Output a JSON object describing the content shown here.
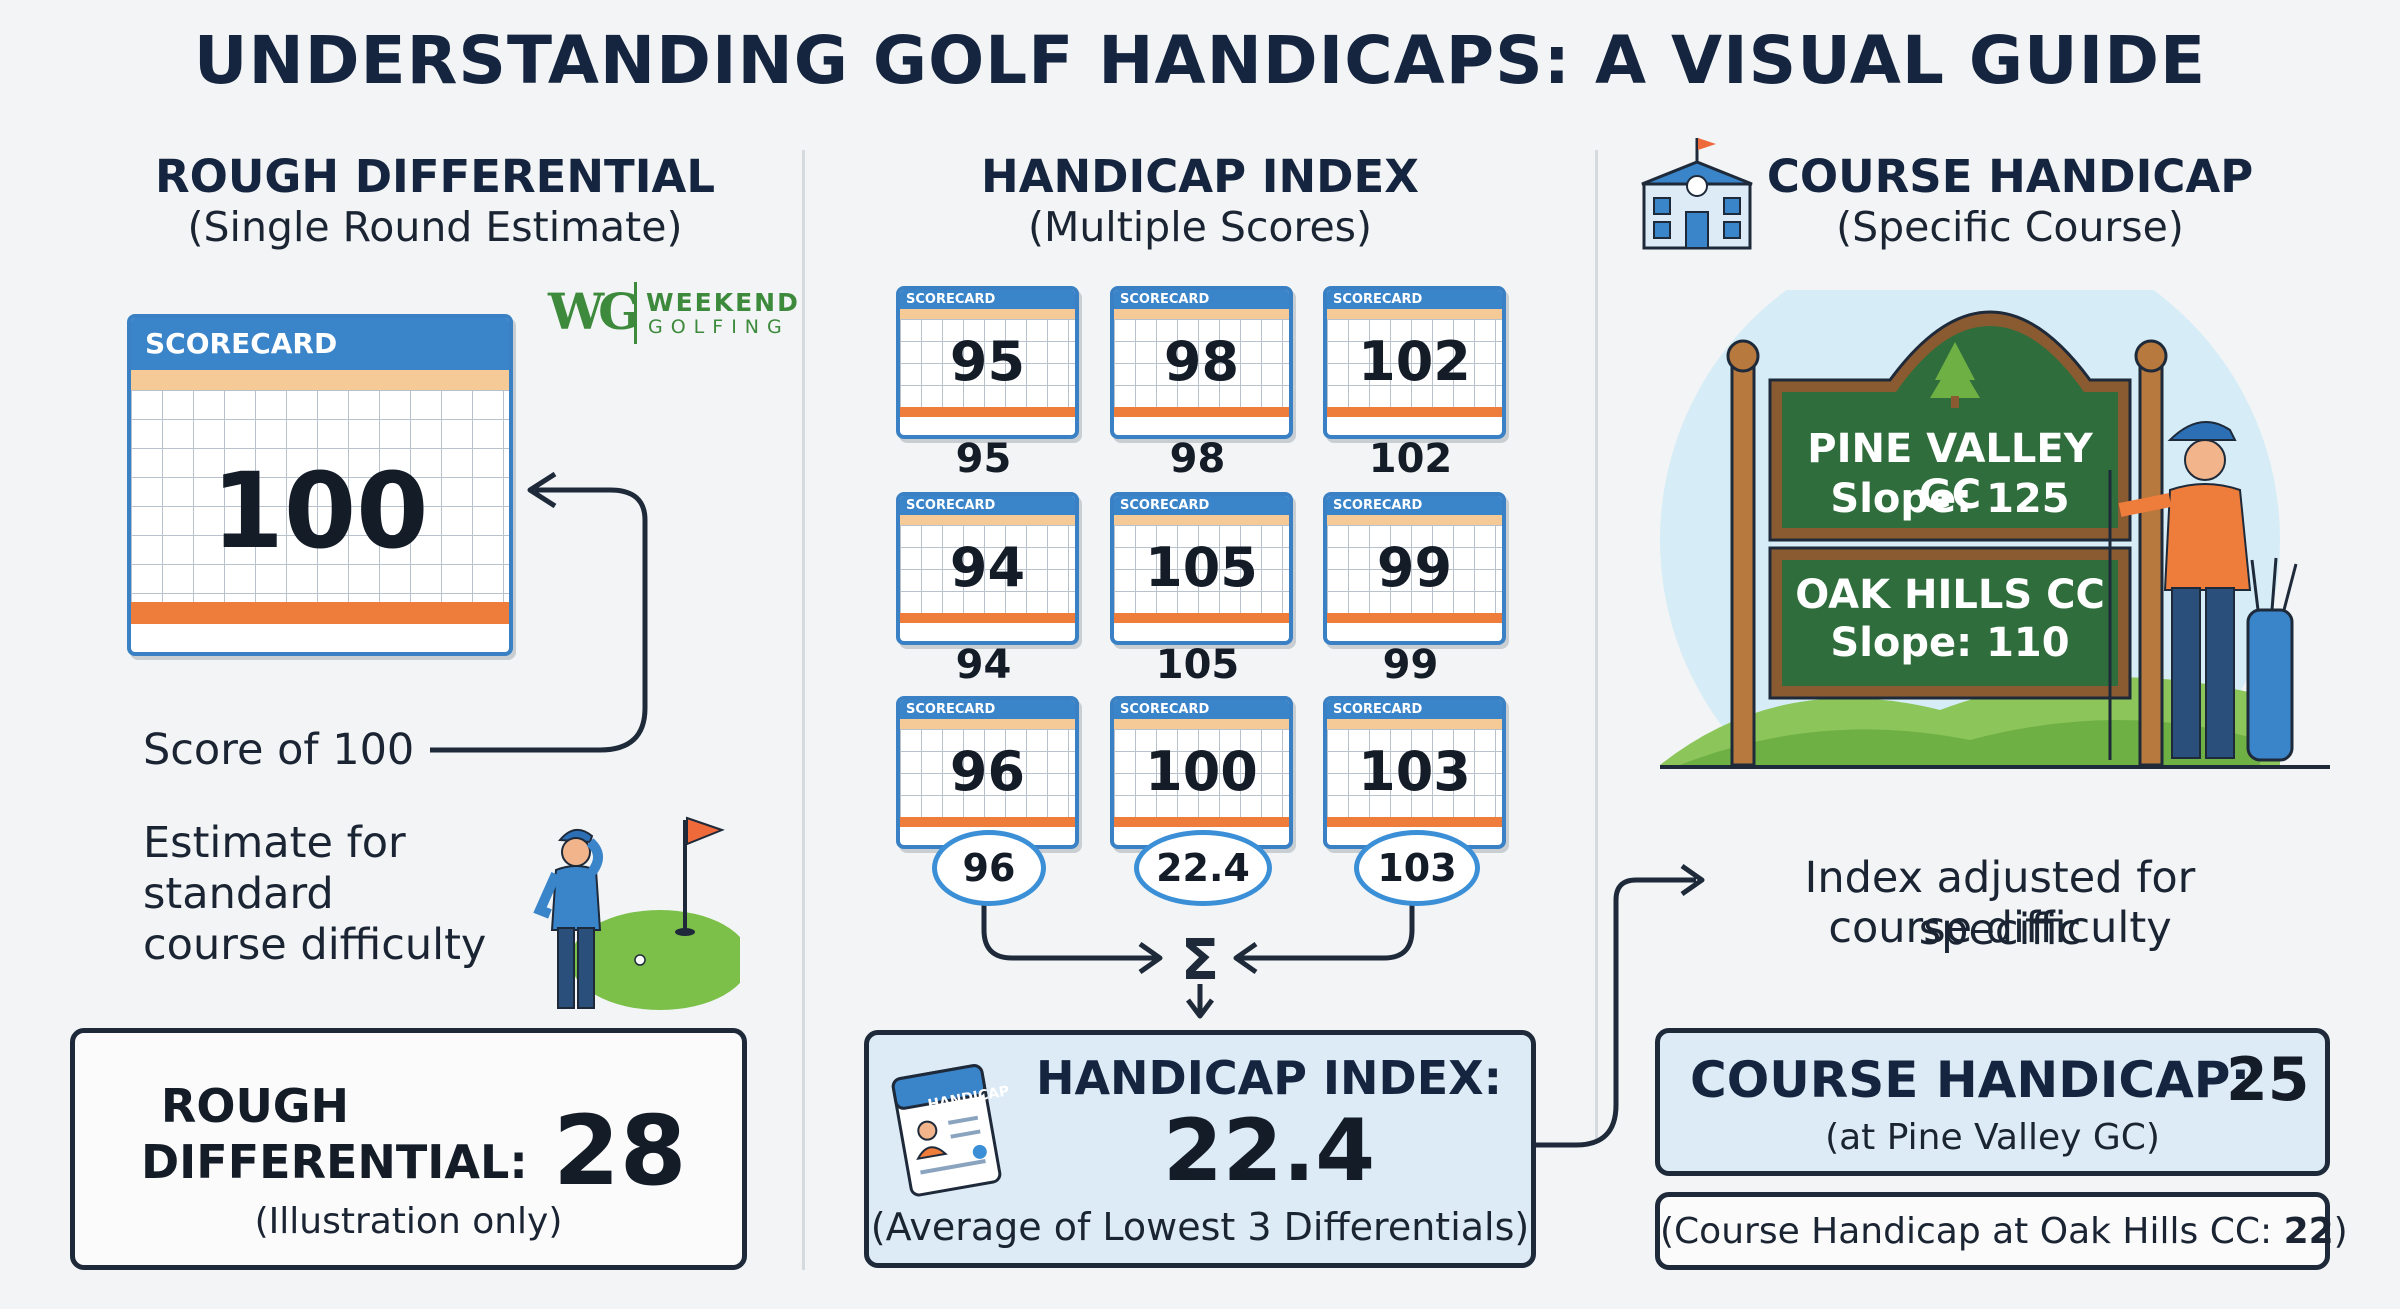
{
  "title": "UNDERSTANDING GOLF HANDICAPS: A VISUAL GUIDE",
  "brand": {
    "logo_mark": "WG",
    "line1": "WEEKEND",
    "line2": "GOLFING"
  },
  "rough": {
    "heading": "ROUGH DIFFERENTIAL",
    "subheading": "(Single Round Estimate)",
    "scorecard_label": "SCORECARD",
    "scorecard_score": "100",
    "score_caption": "Score of 100",
    "estimate_text_1": "Estimate for",
    "estimate_text_2": "standard",
    "estimate_text_3": "course difficulty",
    "result_line1": "ROUGH",
    "result_line2": "DIFFERENTIAL:",
    "result_value": "28",
    "result_note": "(Illustration only)"
  },
  "index": {
    "heading": "HANDICAP INDEX",
    "subheading": "(Multiple Scores)",
    "scorecard_label": "SCORECARD",
    "scores": [
      "95",
      "98",
      "102",
      "94",
      "105",
      "99",
      "96",
      "100",
      "103"
    ],
    "row_labels": [
      "95",
      "98",
      "102",
      "94",
      "105",
      "99"
    ],
    "lowest_ovals": [
      "96",
      "22.4",
      "103"
    ],
    "sigma": "Σ",
    "badge_label": "HANDICAP",
    "result_title": "HANDICAP INDEX:",
    "result_value": "22.4",
    "result_note": "(Average of Lowest 3 Differentials)"
  },
  "course": {
    "heading": "COURSE HANDICAP",
    "subheading": "(Specific Course)",
    "sign1_name": "PINE VALLEY GC",
    "sign1_slope": "Slope: 125",
    "sign2_name": "OAK HILLS CC",
    "sign2_slope": "Slope: 110",
    "adjust_line1": "Index adjusted for specific",
    "adjust_line2": "course difficulty",
    "result_title": "COURSE HANDICAP:",
    "result_value": "25",
    "result_note": "(at Pine Valley GC)",
    "alt_text": "(Course Handicap at Oak Hills CC:",
    "alt_value": "22",
    "alt_close": ")"
  },
  "colors": {
    "navy": "#15253f",
    "scorecard_blue": "#3a84c9",
    "scorecard_orange": "#ee7d3c",
    "scorecard_peach": "#f5ca96",
    "sign_green": "#2f6e3c",
    "sign_frame": "#8a5a30",
    "oval_blue": "#3a8fd6",
    "box_fill": "#dcebf6"
  }
}
